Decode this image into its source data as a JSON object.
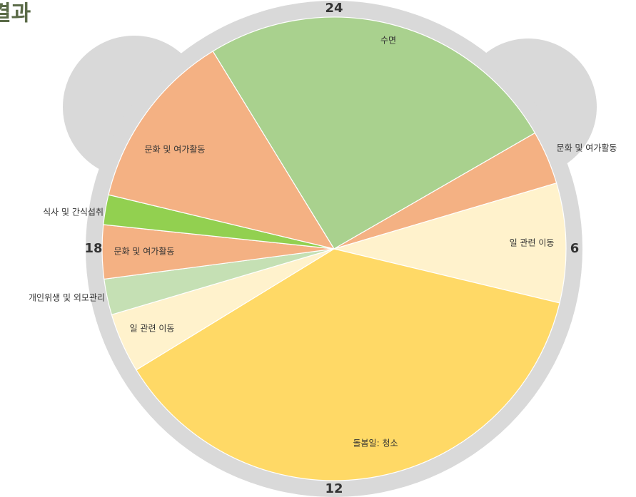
{
  "chart_data": {
    "type": "pie",
    "title": "결과",
    "segments": [
      {
        "name": "수면",
        "start": 21.9,
        "end": 4.0,
        "color": "#a9d18e"
      },
      {
        "name": "문화 및 여가활동",
        "start": 4.0,
        "end": 4.9,
        "color": "#f4b183"
      },
      {
        "name": "일 관련 이동",
        "start": 4.9,
        "end": 6.9,
        "color": "#fff2cc"
      },
      {
        "name": "돌봄일: 청소",
        "start": 6.9,
        "end": 15.9,
        "color": "#ffd966"
      },
      {
        "name": "일 관련 이동",
        "start": 15.9,
        "end": 16.9,
        "color": "#fff2cc"
      },
      {
        "name": "개인위생 및 외모관리",
        "start": 16.9,
        "end": 17.5,
        "color": "#c5e0b4"
      },
      {
        "name": "문화 및 여가활동",
        "start": 17.5,
        "end": 18.4,
        "color": "#f4b183"
      },
      {
        "name": "식사 및 간식섭취",
        "start": 18.4,
        "end": 18.9,
        "color": "#92d050"
      },
      {
        "name": "문화 및 여가활동",
        "start": 18.9,
        "end": 21.9,
        "color": "#f4b183"
      }
    ],
    "hour_labels": [
      24,
      6,
      12,
      18
    ]
  }
}
